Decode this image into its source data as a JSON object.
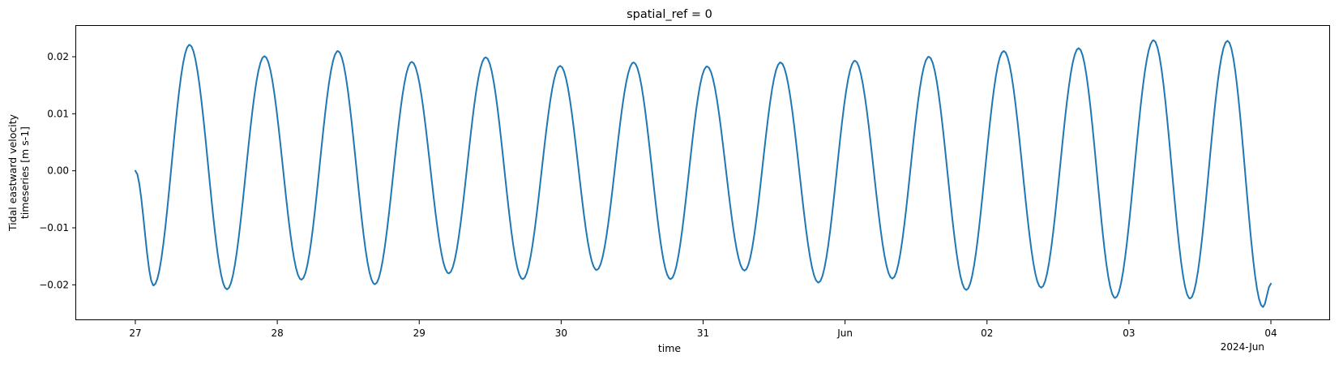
{
  "chart_data": {
    "type": "line",
    "title": "spatial_ref = 0",
    "xlabel": "time",
    "ylabel_lines": [
      "Tidal eastward velocity",
      "timeseries [m s-1]"
    ],
    "x_offset_label": "2024-Jun",
    "x_start": "2024-05-27T00:00",
    "x_end": "2024-06-04T00:00",
    "xlim": [
      "2024-05-26T14:00",
      "2024-06-04T10:00"
    ],
    "ylim": [
      -0.0262,
      0.0254
    ],
    "x_ticks": [
      {
        "t": "2024-05-27",
        "label": "27"
      },
      {
        "t": "2024-05-28",
        "label": "28"
      },
      {
        "t": "2024-05-29",
        "label": "29"
      },
      {
        "t": "2024-05-30",
        "label": "30"
      },
      {
        "t": "2024-05-31",
        "label": "31"
      },
      {
        "t": "2024-06-01",
        "label": "Jun"
      },
      {
        "t": "2024-06-02",
        "label": "02"
      },
      {
        "t": "2024-06-03",
        "label": "03"
      },
      {
        "t": "2024-06-04",
        "label": "04"
      }
    ],
    "y_ticks": [
      {
        "v": 0.02,
        "label": "0.02"
      },
      {
        "v": 0.01,
        "label": "0.01"
      },
      {
        "v": 0.0,
        "label": "0.00"
      },
      {
        "v": -0.01,
        "label": "−0.01"
      },
      {
        "v": -0.02,
        "label": "−0.02"
      }
    ],
    "series": [
      {
        "color": "#1f77b4",
        "extrema": [
          {
            "t": "2024-05-27T00:00",
            "v": 0.0
          },
          {
            "t": "2024-05-27T03:05",
            "v": -0.0201
          },
          {
            "t": "2024-05-27T09:10",
            "v": 0.0221
          },
          {
            "t": "2024-05-27T15:30",
            "v": -0.0208
          },
          {
            "t": "2024-05-27T21:50",
            "v": 0.0201
          },
          {
            "t": "2024-05-28T04:05",
            "v": -0.0191
          },
          {
            "t": "2024-05-28T10:15",
            "v": 0.021
          },
          {
            "t": "2024-05-28T16:30",
            "v": -0.0199
          },
          {
            "t": "2024-05-28T22:45",
            "v": 0.0191
          },
          {
            "t": "2024-05-29T05:00",
            "v": -0.018
          },
          {
            "t": "2024-05-29T11:15",
            "v": 0.0199
          },
          {
            "t": "2024-05-29T17:30",
            "v": -0.019
          },
          {
            "t": "2024-05-29T23:50",
            "v": 0.0184
          },
          {
            "t": "2024-05-30T06:00",
            "v": -0.0174
          },
          {
            "t": "2024-05-30T12:15",
            "v": 0.019
          },
          {
            "t": "2024-05-30T18:30",
            "v": -0.019
          },
          {
            "t": "2024-05-31T00:40",
            "v": 0.0183
          },
          {
            "t": "2024-05-31T07:00",
            "v": -0.0175
          },
          {
            "t": "2024-05-31T13:05",
            "v": 0.019
          },
          {
            "t": "2024-05-31T19:30",
            "v": -0.0196
          },
          {
            "t": "2024-06-01T01:40",
            "v": 0.0193
          },
          {
            "t": "2024-06-01T08:00",
            "v": -0.0189
          },
          {
            "t": "2024-06-01T14:10",
            "v": 0.02
          },
          {
            "t": "2024-06-01T20:30",
            "v": -0.0209
          },
          {
            "t": "2024-06-02T02:50",
            "v": 0.021
          },
          {
            "t": "2024-06-02T09:10",
            "v": -0.0205
          },
          {
            "t": "2024-06-02T15:30",
            "v": 0.0215
          },
          {
            "t": "2024-06-02T21:40",
            "v": -0.0223
          },
          {
            "t": "2024-06-03T04:10",
            "v": 0.0229
          },
          {
            "t": "2024-06-03T10:20",
            "v": -0.0224
          },
          {
            "t": "2024-06-03T16:40",
            "v": 0.0228
          },
          {
            "t": "2024-06-03T22:40",
            "v": -0.0239
          },
          {
            "t": "2024-06-04T00:00",
            "v": -0.0198
          }
        ]
      }
    ]
  }
}
